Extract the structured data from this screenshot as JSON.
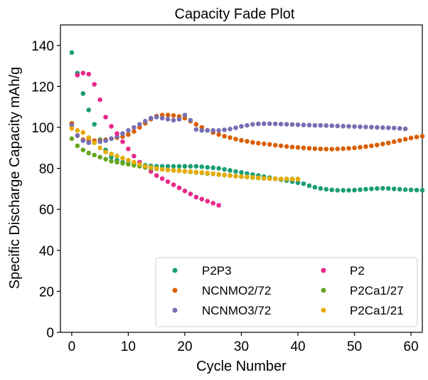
{
  "chart_data": {
    "type": "scatter",
    "title": "Capacity Fade Plot",
    "xlabel": "Cycle Number",
    "ylabel": "Specific Discharge Capacity mAh/g",
    "xlim": [
      -2,
      62
    ],
    "ylim": [
      0,
      150
    ],
    "xticks": [
      0,
      10,
      20,
      30,
      40,
      50,
      60
    ],
    "yticks": [
      0,
      20,
      40,
      60,
      80,
      100,
      120,
      140
    ],
    "grid": false,
    "legend_position": "lower-right",
    "legend_columns": 2,
    "series": [
      {
        "name": "P2P3",
        "color": "#1b9e77",
        "x": [
          0,
          1,
          2,
          3,
          4,
          5,
          6,
          7,
          8,
          9,
          10,
          11,
          12,
          13,
          14,
          15,
          16,
          17,
          18,
          19,
          20,
          21,
          22,
          23,
          24,
          25,
          26,
          27,
          28,
          29,
          30,
          31,
          32,
          33,
          34,
          35,
          36,
          37,
          38,
          39,
          40,
          41,
          42,
          43,
          44,
          45,
          46,
          47,
          48,
          49,
          50,
          51,
          52,
          53,
          54,
          55,
          56,
          57,
          58,
          59,
          60,
          61,
          62
        ],
        "y": [
          136.5,
          126.5,
          116.5,
          108.5,
          101.5,
          94,
          89,
          85.5,
          84,
          83,
          82.5,
          82,
          81.5,
          81.5,
          81.2,
          81,
          81,
          81,
          81,
          81,
          81,
          81,
          81,
          80.8,
          80.5,
          80.3,
          80,
          79.5,
          79,
          78.5,
          78,
          77.5,
          77,
          76.5,
          76,
          75.5,
          75,
          74.5,
          74,
          73.5,
          73,
          72.5,
          71.5,
          70.8,
          70.2,
          69.8,
          69.5,
          69.3,
          69.3,
          69.3,
          69.4,
          69.6,
          69.8,
          70,
          70.2,
          70.3,
          70.2,
          70,
          69.8,
          69.6,
          69.5,
          69.4,
          69.3
        ]
      },
      {
        "name": "NCNMO2/72",
        "color": "#d95f02",
        "x": [
          0,
          1,
          2,
          3,
          4,
          5,
          6,
          7,
          8,
          9,
          10,
          11,
          12,
          13,
          14,
          15,
          16,
          17,
          18,
          19,
          20,
          21,
          22,
          23,
          24,
          25,
          26,
          27,
          28,
          29,
          30,
          31,
          32,
          33,
          34,
          35,
          36,
          37,
          38,
          39,
          40,
          41,
          42,
          43,
          44,
          45,
          46,
          47,
          48,
          49,
          50,
          51,
          52,
          53,
          54,
          55,
          56,
          57,
          58,
          59,
          60,
          61,
          62
        ],
        "y": [
          102,
          96,
          94,
          93.5,
          93.5,
          93.5,
          94,
          94.5,
          95,
          95.5,
          96.5,
          98,
          100,
          102,
          104,
          105.5,
          106,
          106,
          105.8,
          105.3,
          104.5,
          103,
          101.5,
          100,
          98.5,
          97.5,
          96.5,
          95.7,
          95,
          94.3,
          93.7,
          93.2,
          92.7,
          92.3,
          92,
          91.7,
          91.3,
          91,
          90.7,
          90.4,
          90.2,
          90,
          89.8,
          89.6,
          89.5,
          89.4,
          89.4,
          89.5,
          89.6,
          89.8,
          90,
          90.3,
          90.6,
          91,
          91.4,
          91.9,
          92.4,
          93,
          93.6,
          94.2,
          94.8,
          95.3,
          95.7
        ]
      },
      {
        "name": "NCNMO3/72",
        "color": "#7570b3",
        "x": [
          0,
          1,
          2,
          3,
          4,
          5,
          6,
          7,
          8,
          9,
          10,
          11,
          12,
          13,
          14,
          15,
          16,
          17,
          18,
          19,
          20,
          21,
          22,
          23,
          24,
          25,
          26,
          27,
          28,
          29,
          30,
          31,
          32,
          33,
          34,
          35,
          36,
          37,
          38,
          39,
          40,
          41,
          42,
          43,
          44,
          45,
          46,
          47,
          48,
          49,
          50,
          51,
          52,
          53,
          54,
          55,
          56,
          57,
          58,
          59
        ],
        "y": [
          101,
          96,
          93.5,
          92.5,
          92.5,
          93,
          93.5,
          94.5,
          95.5,
          97,
          98.5,
          100,
          101.5,
          103,
          104.5,
          105,
          104.5,
          104,
          103.5,
          104,
          106,
          103.5,
          99,
          98.5,
          98.5,
          98.5,
          98.5,
          98.8,
          99.2,
          99.8,
          100.5,
          101,
          101.5,
          101.7,
          101.8,
          101.8,
          101.7,
          101.6,
          101.5,
          101.4,
          101.3,
          101.2,
          101.1,
          101,
          101,
          100.9,
          100.8,
          100.7,
          100.6,
          100.5,
          100.4,
          100.3,
          100.2,
          100.1,
          100,
          99.9,
          99.8,
          99.7,
          99.5,
          99.3
        ]
      },
      {
        "name": "P2",
        "color": "#e7298a",
        "x": [
          1,
          2,
          3,
          4,
          5,
          6,
          7,
          8,
          9,
          10,
          11,
          12,
          13,
          14,
          15,
          16,
          17,
          18,
          19,
          20,
          21,
          22,
          23,
          24,
          25,
          26
        ],
        "y": [
          125.5,
          126.5,
          126,
          121,
          113.5,
          105,
          100.5,
          97,
          93,
          89.5,
          86,
          83,
          80.5,
          78.5,
          76.5,
          75,
          73.5,
          72,
          70.5,
          69,
          67.5,
          66,
          65,
          64,
          63,
          62
        ]
      },
      {
        "name": "P2Ca1/27",
        "color": "#66a61e",
        "x": [
          0,
          1,
          2,
          3,
          4,
          5,
          6,
          7,
          8,
          9,
          10,
          11,
          12,
          13,
          14,
          15,
          16,
          17,
          18,
          19,
          20,
          21,
          22,
          23,
          24,
          25,
          26,
          27,
          28,
          29,
          30,
          31,
          32,
          33,
          34,
          35,
          36,
          37,
          38,
          39,
          40
        ],
        "y": [
          94.5,
          91,
          89,
          87.5,
          86.5,
          85.5,
          84.5,
          83.5,
          83,
          82.5,
          82,
          81.5,
          81,
          80.5,
          80,
          79.8,
          79.5,
          79.3,
          79,
          78.8,
          78.5,
          78.3,
          78,
          77.8,
          77.5,
          77.3,
          77,
          76.7,
          76.5,
          76.2,
          76,
          75.8,
          75.5,
          75.3,
          75.1,
          75,
          74.9,
          74.8,
          74.8,
          74.8,
          74.8
        ]
      },
      {
        "name": "P2Ca1/21",
        "color": "#e6ab02",
        "x": [
          0,
          1,
          2,
          3,
          4,
          5,
          6,
          7,
          8,
          9,
          10,
          11,
          12,
          13,
          14,
          15,
          16,
          17,
          18,
          19,
          20,
          21,
          22,
          23,
          24,
          25,
          26,
          27,
          28,
          29,
          30,
          31,
          32,
          33,
          34,
          35,
          36,
          37,
          38,
          39,
          40
        ],
        "y": [
          99.5,
          98.5,
          97.5,
          95,
          92.5,
          90,
          88,
          87,
          86,
          85,
          84,
          83,
          82,
          81,
          80.5,
          80,
          79.5,
          79.2,
          79,
          78.8,
          78.6,
          78.4,
          78.2,
          78,
          77.7,
          77.4,
          77.1,
          76.8,
          76.5,
          76.2,
          76,
          75.8,
          75.6,
          75.4,
          75.2,
          75,
          74.9,
          74.8,
          74.8,
          74.7,
          74.7
        ]
      }
    ]
  }
}
